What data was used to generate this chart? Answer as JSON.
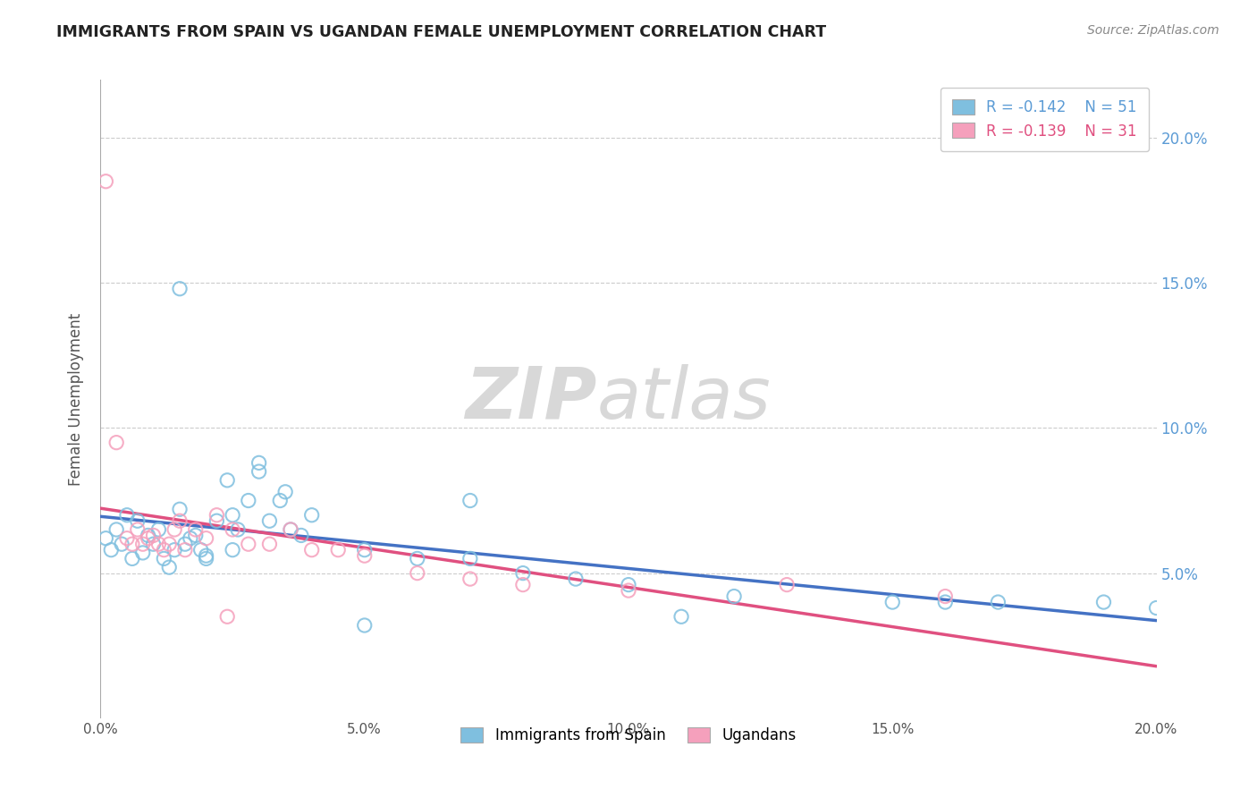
{
  "title": "IMMIGRANTS FROM SPAIN VS UGANDAN FEMALE UNEMPLOYMENT CORRELATION CHART",
  "source": "Source: ZipAtlas.com",
  "xlabel": "",
  "ylabel": "Female Unemployment",
  "xlim": [
    0.0,
    0.2
  ],
  "ylim": [
    0.0,
    0.22
  ],
  "xtick_labels": [
    "0.0%",
    "",
    "5.0%",
    "",
    "10.0%",
    "",
    "15.0%",
    "",
    "20.0%"
  ],
  "xtick_vals": [
    0.0,
    0.025,
    0.05,
    0.075,
    0.1,
    0.125,
    0.15,
    0.175,
    0.2
  ],
  "ytick_labels_right": [
    "5.0%",
    "10.0%",
    "15.0%",
    "20.0%"
  ],
  "ytick_vals_right": [
    0.05,
    0.1,
    0.15,
    0.2
  ],
  "blue_color": "#7fbfdf",
  "pink_color": "#f5a0bc",
  "blue_line_color": "#4472c4",
  "pink_line_color": "#e05080",
  "legend_R_blue": "R = -0.142",
  "legend_N_blue": "N = 51",
  "legend_R_pink": "R = -0.139",
  "legend_N_pink": "N = 31",
  "watermark_ZIP": "ZIP",
  "watermark_atlas": "atlas",
  "blue_scatter_x": [
    0.001,
    0.002,
    0.003,
    0.004,
    0.005,
    0.006,
    0.007,
    0.008,
    0.009,
    0.01,
    0.011,
    0.012,
    0.013,
    0.014,
    0.015,
    0.016,
    0.017,
    0.018,
    0.019,
    0.02,
    0.022,
    0.024,
    0.026,
    0.028,
    0.03,
    0.032,
    0.034,
    0.036,
    0.038,
    0.04,
    0.025,
    0.03,
    0.035,
    0.05,
    0.06,
    0.07,
    0.08,
    0.09,
    0.1,
    0.11,
    0.015,
    0.02,
    0.025,
    0.05,
    0.07,
    0.12,
    0.15,
    0.16,
    0.17,
    0.19,
    0.2
  ],
  "blue_scatter_y": [
    0.062,
    0.058,
    0.065,
    0.06,
    0.07,
    0.055,
    0.068,
    0.057,
    0.063,
    0.06,
    0.065,
    0.055,
    0.052,
    0.058,
    0.072,
    0.06,
    0.062,
    0.063,
    0.058,
    0.056,
    0.068,
    0.082,
    0.065,
    0.075,
    0.085,
    0.068,
    0.075,
    0.065,
    0.063,
    0.07,
    0.058,
    0.088,
    0.078,
    0.058,
    0.055,
    0.055,
    0.05,
    0.048,
    0.046,
    0.035,
    0.148,
    0.055,
    0.07,
    0.032,
    0.075,
    0.042,
    0.04,
    0.04,
    0.04,
    0.04,
    0.038
  ],
  "pink_scatter_x": [
    0.001,
    0.003,
    0.005,
    0.006,
    0.007,
    0.008,
    0.009,
    0.01,
    0.011,
    0.012,
    0.013,
    0.014,
    0.015,
    0.016,
    0.018,
    0.02,
    0.022,
    0.025,
    0.028,
    0.032,
    0.036,
    0.04,
    0.05,
    0.06,
    0.08,
    0.1,
    0.13,
    0.16,
    0.024,
    0.045,
    0.07
  ],
  "pink_scatter_y": [
    0.185,
    0.095,
    0.062,
    0.06,
    0.065,
    0.06,
    0.062,
    0.063,
    0.06,
    0.058,
    0.06,
    0.065,
    0.068,
    0.058,
    0.065,
    0.062,
    0.07,
    0.065,
    0.06,
    0.06,
    0.065,
    0.058,
    0.056,
    0.05,
    0.046,
    0.044,
    0.046,
    0.042,
    0.035,
    0.058,
    0.048
  ]
}
